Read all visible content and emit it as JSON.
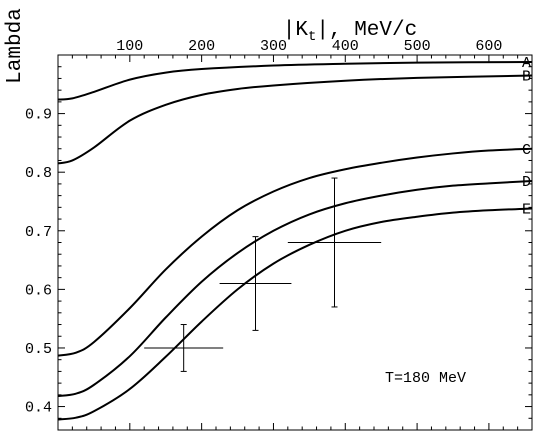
{
  "chart_data": {
    "type": "line",
    "xlabel_main": "|K",
    "xlabel_sub": "t",
    "xlabel_rest": "|, MeV/c",
    "ylabel": "Lambda",
    "annotation": "T=180 MeV",
    "xlim": [
      0,
      660
    ],
    "ylim": [
      0.36,
      1.0
    ],
    "x_ticks": [
      100,
      200,
      300,
      400,
      500,
      600
    ],
    "y_ticks": [
      0.4,
      0.5,
      0.6,
      0.7,
      0.8,
      0.9
    ],
    "grid": false,
    "series": [
      {
        "name": "A",
        "points": [
          [
            0,
            0.924
          ],
          [
            20,
            0.926
          ],
          [
            50,
            0.937
          ],
          [
            100,
            0.958
          ],
          [
            150,
            0.97
          ],
          [
            200,
            0.976
          ],
          [
            300,
            0.982
          ],
          [
            400,
            0.985
          ],
          [
            500,
            0.987
          ],
          [
            660,
            0.988
          ]
        ]
      },
      {
        "name": "B",
        "points": [
          [
            0,
            0.815
          ],
          [
            20,
            0.82
          ],
          [
            50,
            0.842
          ],
          [
            100,
            0.888
          ],
          [
            150,
            0.915
          ],
          [
            200,
            0.932
          ],
          [
            250,
            0.942
          ],
          [
            300,
            0.948
          ],
          [
            400,
            0.956
          ],
          [
            500,
            0.961
          ],
          [
            660,
            0.965
          ]
        ]
      },
      {
        "name": "C",
        "points": [
          [
            0,
            0.487
          ],
          [
            25,
            0.492
          ],
          [
            50,
            0.51
          ],
          [
            100,
            0.568
          ],
          [
            150,
            0.634
          ],
          [
            200,
            0.69
          ],
          [
            250,
            0.735
          ],
          [
            300,
            0.767
          ],
          [
            350,
            0.79
          ],
          [
            400,
            0.805
          ],
          [
            450,
            0.816
          ],
          [
            500,
            0.825
          ],
          [
            550,
            0.832
          ],
          [
            600,
            0.837
          ],
          [
            660,
            0.84
          ]
        ]
      },
      {
        "name": "D",
        "points": [
          [
            0,
            0.418
          ],
          [
            25,
            0.422
          ],
          [
            50,
            0.437
          ],
          [
            100,
            0.486
          ],
          [
            150,
            0.552
          ],
          [
            200,
            0.613
          ],
          [
            250,
            0.662
          ],
          [
            300,
            0.7
          ],
          [
            350,
            0.728
          ],
          [
            400,
            0.747
          ],
          [
            450,
            0.76
          ],
          [
            500,
            0.77
          ],
          [
            550,
            0.777
          ],
          [
            600,
            0.781
          ],
          [
            660,
            0.785
          ]
        ]
      },
      {
        "name": "E",
        "points": [
          [
            0,
            0.378
          ],
          [
            25,
            0.381
          ],
          [
            50,
            0.392
          ],
          [
            100,
            0.43
          ],
          [
            150,
            0.485
          ],
          [
            200,
            0.545
          ],
          [
            250,
            0.6
          ],
          [
            300,
            0.644
          ],
          [
            350,
            0.676
          ],
          [
            400,
            0.7
          ],
          [
            450,
            0.715
          ],
          [
            500,
            0.724
          ],
          [
            550,
            0.731
          ],
          [
            600,
            0.735
          ],
          [
            660,
            0.738
          ]
        ]
      }
    ],
    "data_points": [
      {
        "x": 175,
        "y": 0.5,
        "x_err": 55,
        "y_err": 0.04
      },
      {
        "x": 275,
        "y": 0.61,
        "x_err": 50,
        "y_err": 0.08
      },
      {
        "x": 385,
        "y": 0.68,
        "x_err": 65,
        "y_err": 0.11
      }
    ]
  }
}
